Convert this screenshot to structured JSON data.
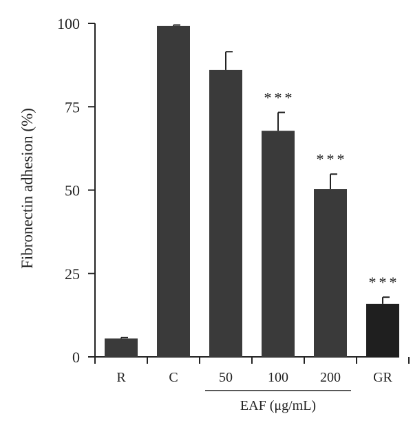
{
  "chart_data": {
    "type": "bar",
    "ylabel": "Fibronectin adhesion (%)",
    "ylim": [
      0,
      100
    ],
    "yticks": [
      0,
      25,
      50,
      75,
      100
    ],
    "categories": [
      "R",
      "C",
      "50",
      "100",
      "200",
      "GR"
    ],
    "values": [
      5.5,
      99.2,
      86,
      67.8,
      50.3,
      15.9
    ],
    "errors": [
      0.3,
      0.3,
      5.5,
      5.5,
      4.5,
      2.0
    ],
    "significance": [
      "",
      "",
      "",
      "***",
      "***",
      "***"
    ],
    "group_label": {
      "text": "EAF (μg/mL)",
      "categories": [
        "50",
        "100",
        "200"
      ]
    },
    "colors": {
      "bar": "#3a3a3a",
      "bar_last": "#1f1f1f",
      "axis": "#222222"
    },
    "grid": false
  }
}
